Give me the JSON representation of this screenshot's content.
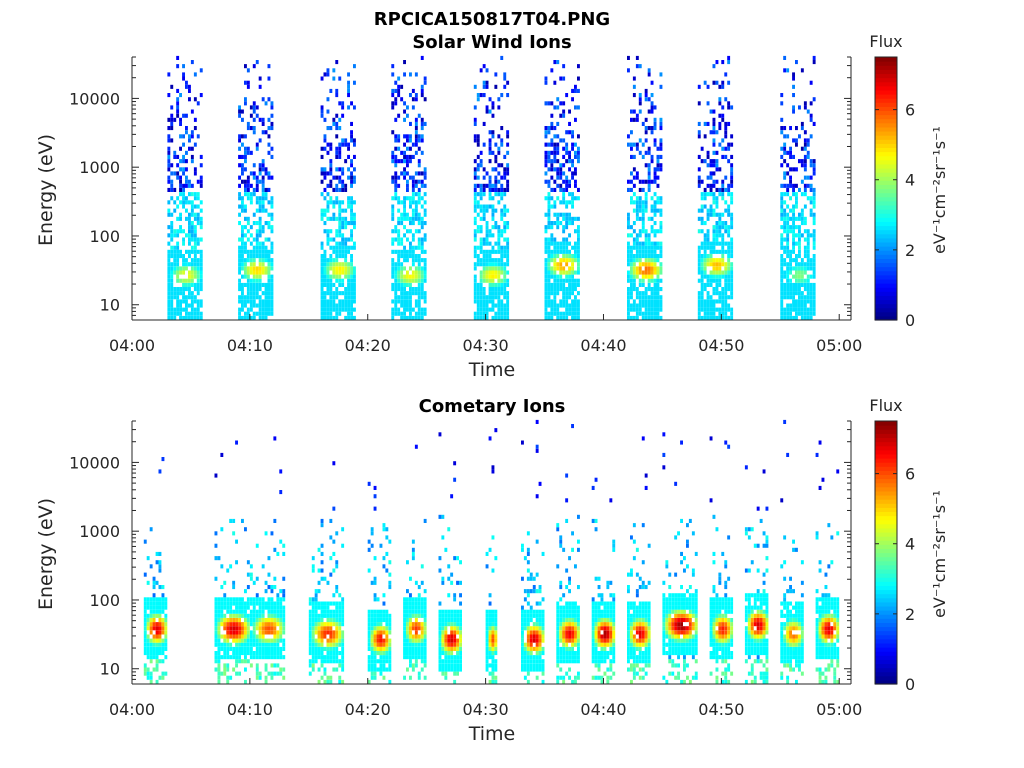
{
  "figure": {
    "title": "RPCICA150817T04.PNG"
  },
  "chart_data": [
    {
      "type": "heatmap",
      "title": "Solar Wind Ions",
      "xlabel": "Time",
      "ylabel": "Energy (eV)",
      "x_ticks": [
        "04:00",
        "04:10",
        "04:20",
        "04:30",
        "04:40",
        "04:50",
        "05:00"
      ],
      "xlim": [
        "04:00",
        "05:01"
      ],
      "y_scale": "log",
      "y_ticks": [
        "10",
        "100",
        "1000",
        "10000"
      ],
      "ylim": [
        6,
        40000
      ],
      "grid": false,
      "colorbar": {
        "title": "Flux",
        "label": "eV⁻¹cm⁻²sr⁻¹s⁻¹",
        "range": [
          0,
          7.5
        ],
        "ticks": [
          "0",
          "2",
          "4",
          "6"
        ],
        "colormap": "jet"
      },
      "bursts": [
        {
          "start": "04:03",
          "end": "04:06",
          "peak_flux": 4.6,
          "low_energy_center_eV": 25
        },
        {
          "start": "04:09",
          "end": "04:12",
          "peak_flux": 5.0,
          "low_energy_center_eV": 30
        },
        {
          "start": "04:16",
          "end": "04:19",
          "peak_flux": 4.8,
          "low_energy_center_eV": 30
        },
        {
          "start": "04:22",
          "end": "04:25",
          "peak_flux": 4.7,
          "low_energy_center_eV": 25
        },
        {
          "start": "04:29",
          "end": "04:32",
          "peak_flux": 4.8,
          "low_energy_center_eV": 25
        },
        {
          "start": "04:35",
          "end": "04:38",
          "peak_flux": 5.4,
          "low_energy_center_eV": 35
        },
        {
          "start": "04:42",
          "end": "04:45",
          "peak_flux": 5.8,
          "low_energy_center_eV": 30
        },
        {
          "start": "04:48",
          "end": "04:51",
          "peak_flux": 5.2,
          "low_energy_center_eV": 35
        },
        {
          "start": "04:55",
          "end": "04:58",
          "peak_flux": 3.8,
          "low_energy_center_eV": 25
        }
      ]
    },
    {
      "type": "heatmap",
      "title": "Cometary Ions",
      "xlabel": "Time",
      "ylabel": "Energy (eV)",
      "x_ticks": [
        "04:00",
        "04:10",
        "04:20",
        "04:30",
        "04:40",
        "04:50",
        "05:00"
      ],
      "xlim": [
        "04:00",
        "05:01"
      ],
      "y_scale": "log",
      "y_ticks": [
        "10",
        "100",
        "1000",
        "10000"
      ],
      "ylim": [
        6,
        40000
      ],
      "grid": false,
      "colorbar": {
        "title": "Flux",
        "label": "eV⁻¹cm⁻²sr⁻¹s⁻¹",
        "range": [
          0,
          7.5
        ],
        "ticks": [
          "0",
          "2",
          "4",
          "6"
        ],
        "colormap": "jet"
      },
      "bursts": [
        {
          "start": "04:01",
          "end": "04:03",
          "peak_flux": 6.8,
          "energy_center_eV": 35
        },
        {
          "start": "04:07",
          "end": "04:10",
          "peak_flux": 6.9,
          "energy_center_eV": 35
        },
        {
          "start": "04:10",
          "end": "04:13",
          "peak_flux": 6.0,
          "energy_center_eV": 35
        },
        {
          "start": "04:15",
          "end": "04:18",
          "peak_flux": 6.3,
          "energy_center_eV": 30
        },
        {
          "start": "04:20",
          "end": "04:22",
          "peak_flux": 6.5,
          "energy_center_eV": 25
        },
        {
          "start": "04:23",
          "end": "04:25",
          "peak_flux": 6.2,
          "energy_center_eV": 35
        },
        {
          "start": "04:26",
          "end": "04:28",
          "peak_flux": 6.9,
          "energy_center_eV": 25
        },
        {
          "start": "04:30",
          "end": "04:31",
          "peak_flux": 6.0,
          "energy_center_eV": 25
        },
        {
          "start": "04:33",
          "end": "04:35",
          "peak_flux": 6.9,
          "energy_center_eV": 25
        },
        {
          "start": "04:36",
          "end": "04:38",
          "peak_flux": 6.7,
          "energy_center_eV": 30
        },
        {
          "start": "04:39",
          "end": "04:41",
          "peak_flux": 7.2,
          "energy_center_eV": 30
        },
        {
          "start": "04:42",
          "end": "04:44",
          "peak_flux": 6.8,
          "energy_center_eV": 30
        },
        {
          "start": "04:45",
          "end": "04:48",
          "peak_flux": 7.3,
          "energy_center_eV": 40
        },
        {
          "start": "04:49",
          "end": "04:51",
          "peak_flux": 6.4,
          "energy_center_eV": 35
        },
        {
          "start": "04:52",
          "end": "04:54",
          "peak_flux": 6.9,
          "energy_center_eV": 40
        },
        {
          "start": "04:55",
          "end": "04:57",
          "peak_flux": 5.8,
          "energy_center_eV": 30
        },
        {
          "start": "04:58",
          "end": "05:00",
          "peak_flux": 6.8,
          "energy_center_eV": 35
        }
      ]
    }
  ]
}
